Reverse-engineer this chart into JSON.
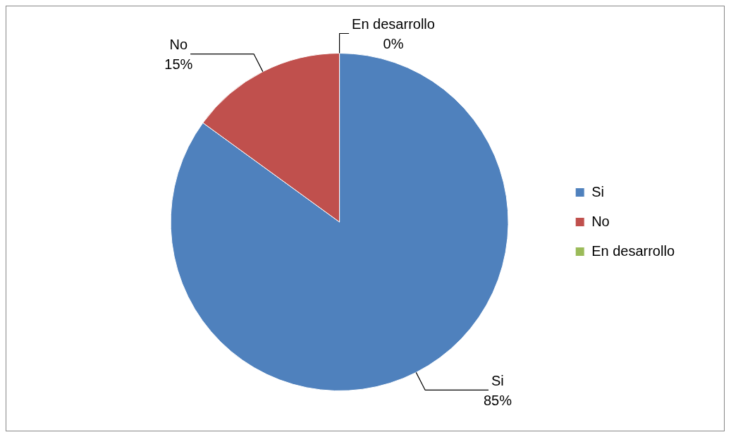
{
  "chart_data": {
    "type": "pie",
    "categories": [
      "Si",
      "No",
      "En desarrollo"
    ],
    "values": [
      85,
      15,
      0
    ],
    "colors": [
      "#4f81bd",
      "#c0504d",
      "#9bbb59"
    ],
    "value_labels": [
      "85%",
      "15%",
      "0%"
    ],
    "legend": "right"
  }
}
